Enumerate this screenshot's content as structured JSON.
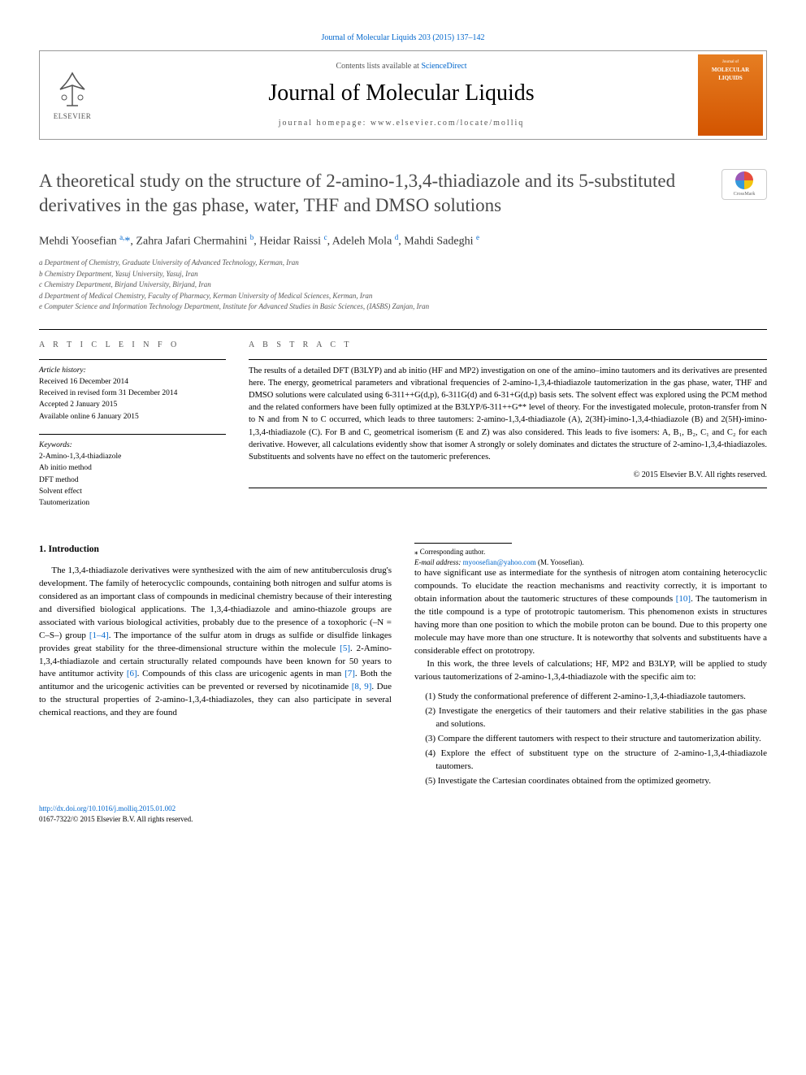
{
  "top_citation": "Journal of Molecular Liquids 203 (2015) 137–142",
  "header": {
    "contents_prefix": "Contents lists available at ",
    "contents_link": "ScienceDirect",
    "journal_name": "Journal of Molecular Liquids",
    "homepage_label": "journal homepage: www.elsevier.com/locate/molliq",
    "elsevier": "ELSEVIER",
    "cover_small": "Journal of",
    "cover_title": "MOLECULAR LIQUIDS"
  },
  "title": "A theoretical study on the structure of 2-amino-1,3,4-thiadiazole and its 5-substituted derivatives in the gas phase, water, THF and DMSO solutions",
  "crossmark": "CrossMark",
  "authors_html": "Mehdi Yoosefian <sup>a,</sup><span class='star'>*</span>, Zahra Jafari Chermahini <sup>b</sup>, Heidar Raissi <sup>c</sup>, Adeleh Mola <sup>d</sup>, Mahdi Sadeghi <sup>e</sup>",
  "affiliations": [
    "a  Department of Chemistry, Graduate University of Advanced Technology, Kerman, Iran",
    "b  Chemistry Department, Yasuj University, Yasuj, Iran",
    "c  Chemistry Department, Birjand University, Birjand, Iran",
    "d  Department of Medical Chemistry, Faculty of Pharmacy, Kerman University of Medical Sciences, Kerman, Iran",
    "e  Computer Science and Information Technology Department, Institute for Advanced Studies in Basic Sciences, (IASBS) Zanjan, Iran"
  ],
  "article_info_heading": "A R T I C L E   I N F O",
  "history_title": "Article history:",
  "history": [
    "Received 16 December 2014",
    "Received in revised form 31 December 2014",
    "Accepted 2 January 2015",
    "Available online 6 January 2015"
  ],
  "keywords_title": "Keywords:",
  "keywords": [
    "2-Amino-1,3,4-thiadiazole",
    "Ab initio method",
    "DFT method",
    "Solvent effect",
    "Tautomerization"
  ],
  "abstract_heading": "A B S T R A C T",
  "abstract": "The results of a detailed DFT (B3LYP) and ab initio (HF and MP2) investigation on one of the amino–imino tautomers and its derivatives are presented here. The energy, geometrical parameters and vibrational frequencies of 2-amino-1,3,4-thiadiazole tautomerization in the gas phase, water, THF and DMSO solutions were calculated using 6-311++G(d,p), 6-311G(d) and 6-31+G(d,p) basis sets. The solvent effect was explored using the PCM method and the related conformers have been fully optimized at the B3LYP/6-311++G** level of theory. For the investigated molecule, proton-transfer from N to N and from N to C occurred, which leads to three tautomers: 2-amino-1,3,4-thiadiazole (A), 2(3H)-imino-1,3,4-thiadiazole (B) and 2(5H)-imino-1,3,4-thiadiazole (C). For B and C, geometrical isomerism (E and Z) was also considered. This leads to five isomers: A, B₁, B₂, C₁ and C₂ for each derivative. However, all calculations evidently show that isomer A strongly or solely dominates and dictates the structure of 2-amino-1,3,4-thiadiazoles. Substituents and solvents have no effect on the tautomeric preferences.",
  "copyright": "© 2015 Elsevier B.V. All rights reserved.",
  "intro_heading": "1. Introduction",
  "intro_p1_a": "The 1,3,4-thiadiazole derivatives were synthesized with the aim of new antituberculosis drug's development. The family of heterocyclic compounds, containing both nitrogen and sulfur atoms is considered as an important class of compounds in medicinal chemistry because of their interesting and diversified biological applications. The 1,3,4-thiadiazole and amino-thiazole groups are associated with various biological activities, probably due to the presence of a toxophoric (–N = C–S–) group ",
  "ref_1_4": "[1–4]",
  "intro_p1_b": ". The importance of the sulfur atom in drugs as sulfide or disulfide linkages provides great stability for the three-dimensional structure within the molecule ",
  "ref_5": "[5]",
  "intro_p1_c": ". 2-Amino-1,3,4-thiadiazole and certain structurally related compounds have been known for 50 years to have antitumor activity ",
  "ref_6": "[6]",
  "intro_p1_d": ". Compounds of this class are uricogenic agents in man ",
  "ref_7": "[7]",
  "intro_p1_e": ". Both the antitumor and the uricogenic activities can be prevented or reversed by nicotinamide ",
  "ref_8_9": "[8, 9]",
  "intro_p1_f": ". Due to the structural properties of 2-amino-1,3,4-thiadiazoles, they can also participate in several chemical reactions, and they are found ",
  "intro_p2_a": "to have significant use as intermediate for the synthesis of nitrogen atom containing heterocyclic compounds. To elucidate the reaction mechanisms and reactivity correctly, it is important to obtain information about the tautomeric structures of these compounds ",
  "ref_10": "[10]",
  "intro_p2_b": ". The tautomerism in the title compound is a type of prototropic tautomerism. This phenomenon exists in structures having more than one position to which the mobile proton can be bound. Due to this property one molecule may have more than one structure. It is noteworthy that solvents and substituents have a considerable effect on prototropy.",
  "intro_p3": "In this work, the three levels of calculations; HF, MP2 and B3LYP, will be applied to study various tautomerizations of 2-amino-1,3,4-thiadiazole with the specific aim to:",
  "aims": [
    "(1) Study the conformational preference of different 2-amino-1,3,4-thiadiazole tautomers.",
    "(2) Investigate the energetics of their tautomers and their relative stabilities in the gas phase and solutions.",
    "(3) Compare the different tautomers with respect to their structure and tautomerization ability.",
    "(4) Explore the effect of substituent type on the structure of 2-amino-1,3,4-thiadiazole tautomers.",
    "(5) Investigate the Cartesian coordinates obtained from the optimized geometry."
  ],
  "corr_label": "⁎ Corresponding author.",
  "email_label": "E-mail address: ",
  "email": "myoosefian@yahoo.com",
  "email_suffix": " (M. Yoosefian).",
  "doi": "http://dx.doi.org/10.1016/j.molliq.2015.01.002",
  "issn_line": "0167-7322/© 2015 Elsevier B.V. All rights reserved."
}
